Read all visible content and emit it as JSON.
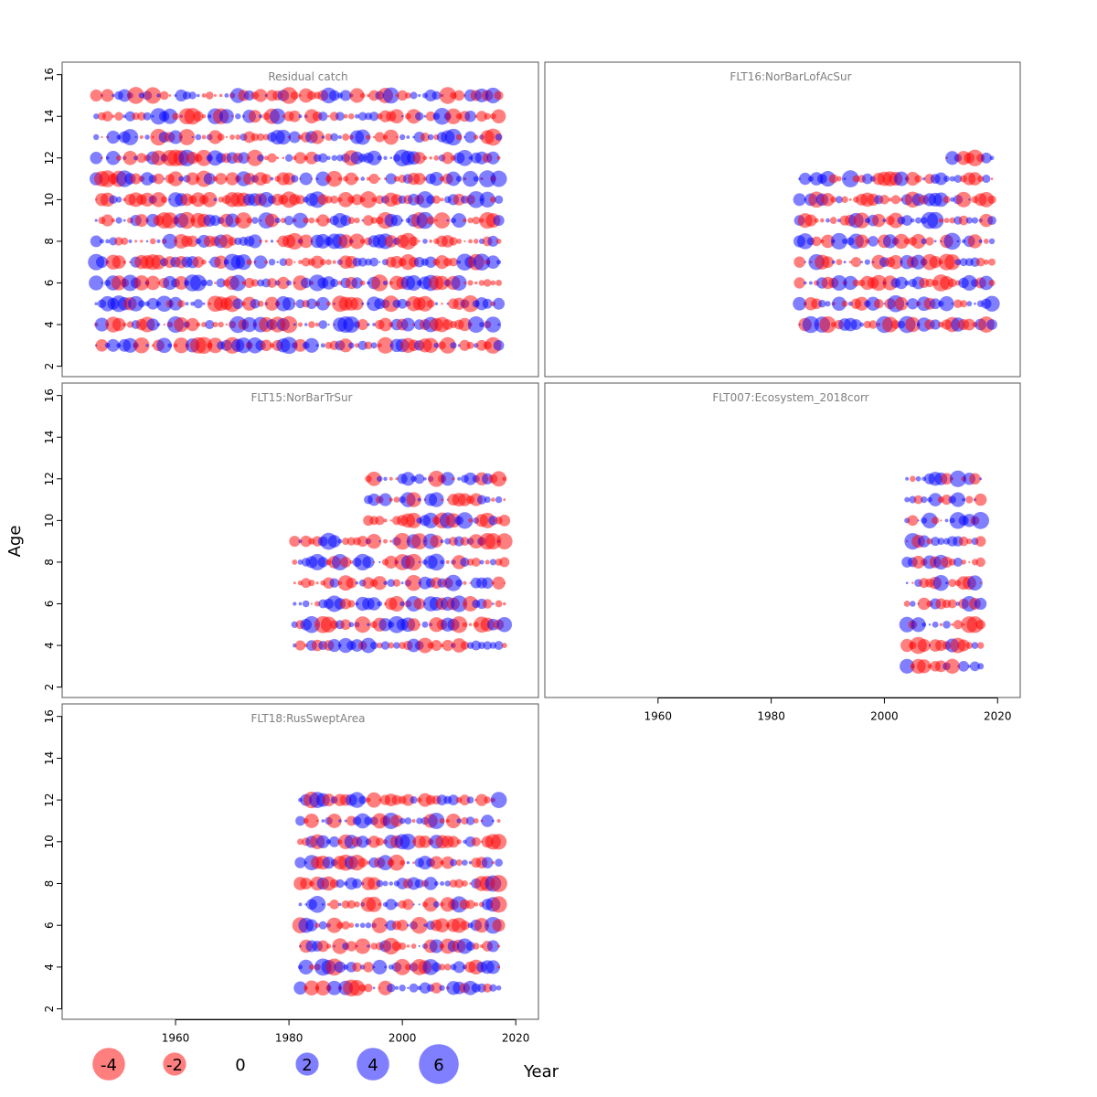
{
  "colors": {
    "positive": "#0000ff",
    "negative": "#ff0000",
    "panel_border": "#555555",
    "title": "#808080"
  },
  "chart_data": {
    "type": "scatter",
    "subtype": "bubble residual plot",
    "xlabel": "Year",
    "ylabel": "Age",
    "xlim": [
      1940,
      2024
    ],
    "ylim": [
      1.5,
      16.6
    ],
    "x_ticks": [
      "1960",
      "1980",
      "2000",
      "2020"
    ],
    "y_ticks": [
      "2",
      "4",
      "6",
      "8",
      "10",
      "12",
      "14",
      "16"
    ],
    "grid": false,
    "legend": {
      "placement": "bottom-left",
      "entries": [
        {
          "label": "-4",
          "value": -4
        },
        {
          "label": "-2",
          "value": -2
        },
        {
          "label": "0",
          "value": 0
        },
        {
          "label": "2",
          "value": 2
        },
        {
          "label": "4",
          "value": 4
        },
        {
          "label": "6",
          "value": 6
        }
      ]
    },
    "panels": [
      {
        "title": "Residual catch",
        "year_start": 1946,
        "year_end": 2017,
        "ages": [
          3,
          4,
          5,
          6,
          7,
          8,
          9,
          10,
          11,
          12,
          13,
          14,
          15
        ]
      },
      {
        "title": "FLT16:NorBarLofAcSur",
        "year_start": 1985,
        "year_end": 2019,
        "ages": [
          4,
          5,
          6,
          7,
          8,
          9,
          10,
          11
        ],
        "extra_rows": [
          {
            "age": 12,
            "year_start": 2011,
            "year_end": 2019
          }
        ]
      },
      {
        "title": "FLT15:NorBarTrSur",
        "year_start": 1981,
        "year_end": 2018,
        "ages": [
          4,
          5,
          6,
          7,
          8,
          9
        ],
        "extra_rows": [
          {
            "age": 10,
            "year_start": 1994,
            "year_end": 2018
          },
          {
            "age": 11,
            "year_start": 1994,
            "year_end": 2018
          },
          {
            "age": 12,
            "year_start": 1994,
            "year_end": 2018
          }
        ]
      },
      {
        "title": "FLT007:Ecosystem_2018corr",
        "year_start": 2004,
        "year_end": 2017,
        "ages": [
          3,
          4,
          5,
          6,
          7,
          8,
          9,
          10,
          11,
          12
        ]
      },
      {
        "title": "FLT18:RusSweptArea",
        "year_start": 1982,
        "year_end": 2017,
        "ages": [
          3,
          4,
          5,
          6,
          7,
          8,
          9,
          10,
          11,
          12
        ]
      }
    ]
  }
}
